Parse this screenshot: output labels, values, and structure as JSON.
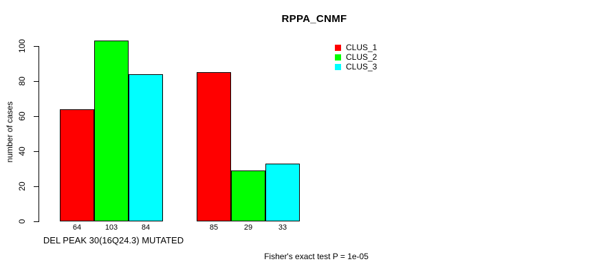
{
  "chart_data": {
    "type": "bar",
    "title": "RPPA_CNMF",
    "ylabel": "number of cases",
    "xlabel": "DEL PEAK 30(16Q24.3) MUTATED",
    "annotation": "Fisher's exact test P = 1e-05",
    "ylim": [
      0,
      100
    ],
    "yticks": [
      0,
      20,
      40,
      60,
      80,
      100
    ],
    "grid": false,
    "legend_position": "top-right",
    "n_groups": 2,
    "bar_values_shown_under_bars": true,
    "series": [
      {
        "name": "CLUS_1",
        "color": "#ff0000",
        "values": [
          64,
          85
        ]
      },
      {
        "name": "CLUS_2",
        "color": "#00ff00",
        "values": [
          103,
          29
        ]
      },
      {
        "name": "CLUS_3",
        "color": "#00ffff",
        "values": [
          84,
          33
        ]
      }
    ]
  },
  "colors": {
    "background": "#ffffff",
    "axis": "#000000",
    "text": "#000000"
  }
}
